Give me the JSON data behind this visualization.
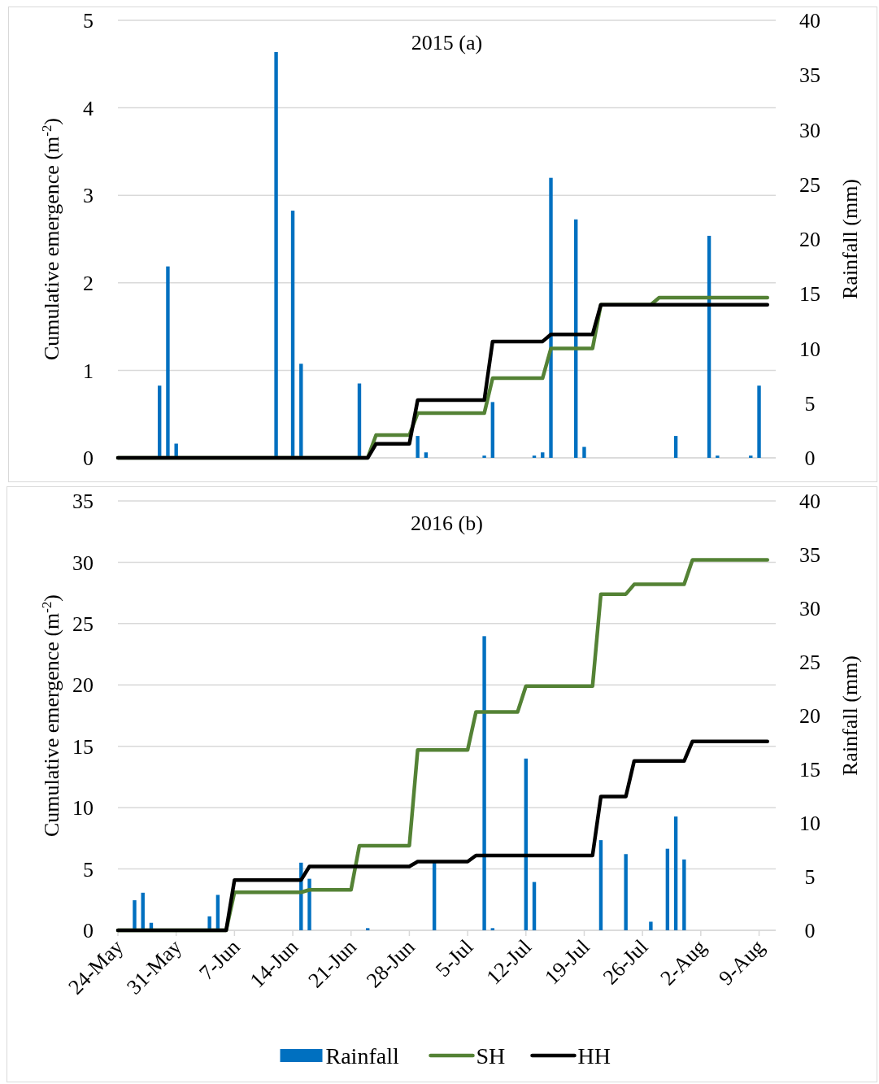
{
  "chart_data": [
    {
      "type": "line",
      "title": "2015 (a)",
      "ylabel": "Cumulative emergence (m$^{-2}$)",
      "y2label": "Rainfall (mm)",
      "xlim": [
        "--05-24",
        "--08-11"
      ],
      "ylim": [
        0,
        5
      ],
      "yticks": [
        0,
        1,
        2,
        3,
        4,
        5
      ],
      "y2lim": [
        0,
        40
      ],
      "y2ticks": [
        0,
        5,
        10,
        15,
        20,
        25,
        30,
        35,
        40
      ],
      "grid": "y",
      "legend": false,
      "tick_labels": "y",
      "series": [
        {
          "type": "bar",
          "axis": "y2",
          "color": "#0070c0",
          "x": [
            "--05-29",
            "--05-30",
            "--05-31",
            "--06-12",
            "--06-14",
            "--06-15",
            "--06-22",
            "--06-29",
            "--06-30",
            "--07-07",
            "--07-08",
            "--07-13",
            "--07-14",
            "--07-15",
            "--07-18",
            "--07-19",
            "--07-30",
            "--08-03",
            "--08-04",
            "--08-08",
            "--08-09"
          ],
          "values": [
            6.6,
            17.5,
            1.3,
            37.1,
            22.6,
            8.6,
            6.8,
            2.0,
            0.5,
            0.2,
            5.1,
            0.2,
            0.5,
            25.6,
            21.8,
            1.0,
            2.0,
            20.3,
            0.2,
            0.2,
            6.6
          ]
        },
        {
          "color": "#548235",
          "x": [
            "--05-24",
            "--06-23",
            "--06-24",
            "--06-28",
            "--06-29",
            "--07-07",
            "--07-08",
            "--07-14",
            "--07-15",
            "--07-20",
            "--07-21",
            "--07-27",
            "--07-28",
            "--08-10"
          ],
          "values": [
            0,
            0,
            0.26,
            0.26,
            0.51,
            0.51,
            0.91,
            0.91,
            1.25,
            1.25,
            1.75,
            1.75,
            1.83,
            1.83
          ]
        },
        {
          "color": "#000000",
          "x": [
            "--05-24",
            "--06-23",
            "--06-24",
            "--06-28",
            "--06-29",
            "--07-07",
            "--07-08",
            "--07-14",
            "--07-15",
            "--07-20",
            "--07-21",
            "--08-10"
          ],
          "values": [
            0,
            0,
            0.16,
            0.16,
            0.66,
            0.66,
            1.33,
            1.33,
            1.41,
            1.41,
            1.75,
            1.75
          ]
        }
      ]
    },
    {
      "type": "line",
      "title": "2016 (b)",
      "ylabel": "Cumulative emergence (m$^{-2}$)",
      "y2label": "Rainfall (mm)",
      "xlim": [
        "--05-24",
        "--08-11"
      ],
      "xticks": [
        {
          "value": "--05-24",
          "label": "24-May"
        },
        {
          "value": "--05-31",
          "label": "31-May"
        },
        {
          "value": "--06-07",
          "label": "7-Jun"
        },
        {
          "value": "--06-14",
          "label": "14-Jun"
        },
        {
          "value": "--06-21",
          "label": "21-Jun"
        },
        {
          "value": "--06-28",
          "label": "28-Jun"
        },
        {
          "value": "--07-05",
          "label": "5-Jul"
        },
        {
          "value": "--07-12",
          "label": "12-Jul"
        },
        {
          "value": "--07-19",
          "label": "19-Jul"
        },
        {
          "value": "--07-26",
          "label": "26-Jul"
        },
        {
          "value": "--08-02",
          "label": "2-Aug"
        },
        {
          "value": "--08-09",
          "label": "9-Aug"
        }
      ],
      "ylim": [
        0,
        35
      ],
      "yticks": [
        0,
        5,
        10,
        15,
        20,
        25,
        30,
        35
      ],
      "y2lim": [
        0,
        40
      ],
      "y2ticks": [
        0,
        5,
        10,
        15,
        20,
        25,
        30,
        35,
        40
      ],
      "grid": "y",
      "legend": "bottom",
      "series": [
        {
          "name": "Rainfall",
          "type": "bar",
          "axis": "y2",
          "color": "#0070c0",
          "x": [
            "--05-26",
            "--05-27",
            "--05-28",
            "--06-04",
            "--06-05",
            "--06-15",
            "--06-16",
            "--06-23",
            "--07-01",
            "--07-07",
            "--07-08",
            "--07-12",
            "--07-13",
            "--07-21",
            "--07-24",
            "--07-27",
            "--07-29",
            "--07-30",
            "--07-31"
          ],
          "values": [
            2.8,
            3.5,
            0.7,
            1.3,
            3.3,
            6.3,
            4.8,
            0.2,
            6.4,
            27.4,
            0.2,
            16.0,
            4.5,
            8.4,
            7.1,
            0.8,
            7.6,
            10.6,
            6.6
          ]
        },
        {
          "name": "SH",
          "color": "#548235",
          "x": [
            "--05-24",
            "--06-06",
            "--06-07",
            "--06-15",
            "--06-16",
            "--06-21",
            "--06-22",
            "--06-28",
            "--06-29",
            "--07-05",
            "--07-06",
            "--07-11",
            "--07-12",
            "--07-20",
            "--07-21",
            "--07-24",
            "--07-25",
            "--07-31",
            "--08-01",
            "--08-10"
          ],
          "values": [
            0,
            0,
            3.1,
            3.1,
            3.3,
            3.3,
            6.9,
            6.9,
            14.7,
            14.7,
            17.8,
            17.8,
            19.9,
            19.9,
            27.4,
            27.4,
            28.2,
            28.2,
            30.2,
            30.2
          ]
        },
        {
          "name": "HH",
          "color": "#000000",
          "x": [
            "--05-24",
            "--06-06",
            "--06-07",
            "--06-15",
            "--06-16",
            "--06-28",
            "--06-29",
            "--07-05",
            "--07-06",
            "--07-20",
            "--07-21",
            "--07-24",
            "--07-25",
            "--07-31",
            "--08-01",
            "--08-10"
          ],
          "values": [
            0,
            0,
            4.1,
            4.1,
            5.2,
            5.2,
            5.6,
            5.6,
            6.1,
            6.1,
            10.9,
            10.9,
            13.8,
            13.8,
            15.4,
            15.4
          ]
        }
      ]
    }
  ]
}
